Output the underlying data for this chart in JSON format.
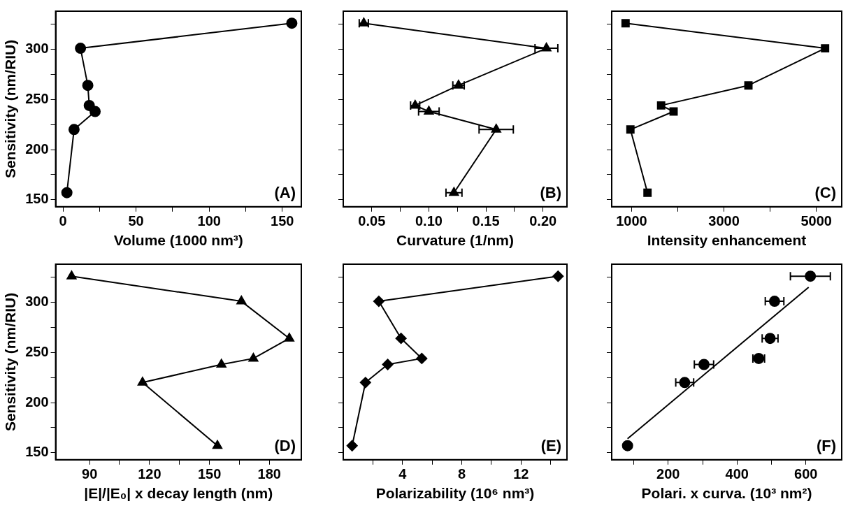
{
  "chart_data": [
    {
      "type": "line",
      "xlabel": "Volume (1000 nm³)",
      "ylabel": "Sensitivity (nm/RIU)",
      "annotations": [
        "(A)"
      ],
      "xlim": [
        -5,
        163
      ],
      "xticks": [
        0,
        {
          "value": 25,
          "label": null
        },
        50,
        {
          "value": 75,
          "label": null
        },
        100,
        {
          "value": 125,
          "label": null
        },
        150
      ],
      "ylim": [
        143,
        338
      ],
      "yticks": [
        150,
        {
          "value": 175,
          "label": null
        },
        200,
        {
          "value": 225,
          "label": null
        },
        250,
        {
          "value": 275,
          "label": null
        },
        300,
        {
          "value": 325,
          "label": null
        }
      ],
      "legend": false,
      "series": [
        {
          "x": [
            156.5,
            12,
            17,
            18,
            22,
            7.6,
            2.7
          ],
          "values": [
            326,
            301,
            264,
            244,
            238,
            220,
            157
          ],
          "color": "#000000",
          "marker": "circle"
        }
      ]
    },
    {
      "type": "line",
      "xlabel": "Curvature (1/nm)",
      "annotations": [
        "(B)"
      ],
      "tick_labels": "x",
      "xlim": [
        0.025,
        0.221
      ],
      "xticks": [
        {
          "value": 0.05,
          "label": "0.05"
        },
        {
          "value": 0.075,
          "label": null
        },
        {
          "value": 0.1,
          "label": "0.10"
        },
        {
          "value": 0.125,
          "label": null
        },
        {
          "value": 0.15,
          "label": "0.15"
        },
        {
          "value": 0.175,
          "label": null
        },
        {
          "value": 0.2,
          "label": "0.20"
        }
      ],
      "ylim": [
        143,
        338
      ],
      "yticks": [
        {
          "value": 150,
          "label": null
        },
        {
          "value": 175,
          "label": null
        },
        {
          "value": 200,
          "label": null
        },
        {
          "value": 225,
          "label": null
        },
        {
          "value": 250,
          "label": null
        },
        {
          "value": 275,
          "label": null
        },
        {
          "value": 300,
          "label": null
        },
        {
          "value": 325,
          "label": null
        }
      ],
      "legend": false,
      "series": [
        {
          "x": [
            0.043,
            0.203,
            0.126,
            0.088,
            0.1,
            0.159,
            0.122
          ],
          "values": [
            326,
            301,
            264,
            244,
            238,
            220,
            157
          ],
          "xerrors": [
            0.004,
            0.01,
            0.005,
            0.004,
            0.009,
            0.015,
            0.007
          ],
          "color": "#000000",
          "marker": "triangle"
        }
      ]
    },
    {
      "type": "line",
      "xlabel": "Intensity enhancement",
      "annotations": [
        "(C)"
      ],
      "tick_labels": "x",
      "xlim": [
        570,
        5550
      ],
      "xticks": [
        1000,
        {
          "value": 2000,
          "label": null
        },
        3000,
        {
          "value": 4000,
          "label": null
        },
        5000
      ],
      "ylim": [
        143,
        338
      ],
      "yticks": [
        {
          "value": 150,
          "label": null
        },
        {
          "value": 175,
          "label": null
        },
        {
          "value": 200,
          "label": null
        },
        {
          "value": 225,
          "label": null
        },
        {
          "value": 250,
          "label": null
        },
        {
          "value": 275,
          "label": null
        },
        {
          "value": 300,
          "label": null
        },
        {
          "value": 325,
          "label": null
        }
      ],
      "legend": false,
      "series": [
        {
          "x": [
            870,
            5190,
            3530,
            1640,
            1910,
            975,
            1345
          ],
          "values": [
            326,
            301,
            264,
            244,
            238,
            220,
            157
          ],
          "color": "#000000",
          "marker": "square"
        }
      ]
    },
    {
      "type": "line",
      "xlabel": "|E|/|E₀| x decay length (nm)",
      "ylabel": "Sensitivity (nm/RIU)",
      "annotations": [
        "(D)"
      ],
      "xlim": [
        73,
        196
      ],
      "xticks": [
        90,
        {
          "value": 105,
          "label": null
        },
        120,
        {
          "value": 135,
          "label": null
        },
        150,
        {
          "value": 165,
          "label": null
        },
        180
      ],
      "ylim": [
        143,
        338
      ],
      "yticks": [
        150,
        {
          "value": 175,
          "label": null
        },
        200,
        {
          "value": 225,
          "label": null
        },
        250,
        {
          "value": 275,
          "label": null
        },
        300,
        {
          "value": 325,
          "label": null
        }
      ],
      "legend": false,
      "series": [
        {
          "x": [
            81,
            166,
            190,
            172,
            156,
            116.5,
            154
          ],
          "values": [
            326,
            301,
            264,
            244,
            238,
            220,
            157
          ],
          "color": "#000000",
          "marker": "triangle"
        }
      ]
    },
    {
      "type": "line",
      "xlabel": "Polarizability (10⁶ nm³)",
      "annotations": [
        "(E)"
      ],
      "tick_labels": "x",
      "xlim": [
        0,
        15.1
      ],
      "xticks": [
        {
          "value": 2,
          "label": null
        },
        4,
        {
          "value": 6,
          "label": null
        },
        8,
        {
          "value": 10,
          "label": null
        },
        12,
        {
          "value": 14,
          "label": null
        }
      ],
      "ylim": [
        143,
        338
      ],
      "yticks": [
        {
          "value": 150,
          "label": null
        },
        {
          "value": 175,
          "label": null
        },
        {
          "value": 200,
          "label": null
        },
        {
          "value": 225,
          "label": null
        },
        {
          "value": 250,
          "label": null
        },
        {
          "value": 275,
          "label": null
        },
        {
          "value": 300,
          "label": null
        },
        {
          "value": 325,
          "label": null
        }
      ],
      "legend": false,
      "series": [
        {
          "x": [
            14.5,
            2.4,
            3.9,
            5.3,
            3,
            1.5,
            0.6
          ],
          "values": [
            326,
            301,
            264,
            244,
            238,
            220,
            157
          ],
          "color": "#000000",
          "marker": "diamond"
        }
      ]
    },
    {
      "type": "scatter",
      "xlabel": "Polari. x curva. (10³ nm²)",
      "annotations": [
        "(F)"
      ],
      "tick_labels": "x",
      "xlim": [
        36,
        704
      ],
      "xticks": [
        {
          "value": 100,
          "label": null
        },
        200,
        {
          "value": 300,
          "label": null
        },
        400,
        {
          "value": 500,
          "label": null
        },
        600
      ],
      "ylim": [
        143,
        338
      ],
      "yticks": [
        {
          "value": 150,
          "label": null
        },
        {
          "value": 175,
          "label": null
        },
        {
          "value": 200,
          "label": null
        },
        {
          "value": 225,
          "label": null
        },
        {
          "value": 250,
          "label": null
        },
        {
          "value": 275,
          "label": null
        },
        {
          "value": 300,
          "label": null
        },
        {
          "value": 325,
          "label": null
        }
      ],
      "legend": false,
      "series": [
        {
          "type": "scatter",
          "x": [
            613,
            509,
            496,
            463,
            304,
            248,
            82
          ],
          "values": [
            326,
            301,
            264,
            244,
            238,
            220,
            157
          ],
          "xerrors": [
            58,
            27,
            23,
            17,
            28,
            26,
            null
          ],
          "color": "#000000",
          "marker": "circle"
        },
        {
          "type": "line",
          "x": [
            82,
            608
          ],
          "values": [
            164,
            315
          ],
          "color": "#000000",
          "marker": "none"
        }
      ]
    }
  ]
}
